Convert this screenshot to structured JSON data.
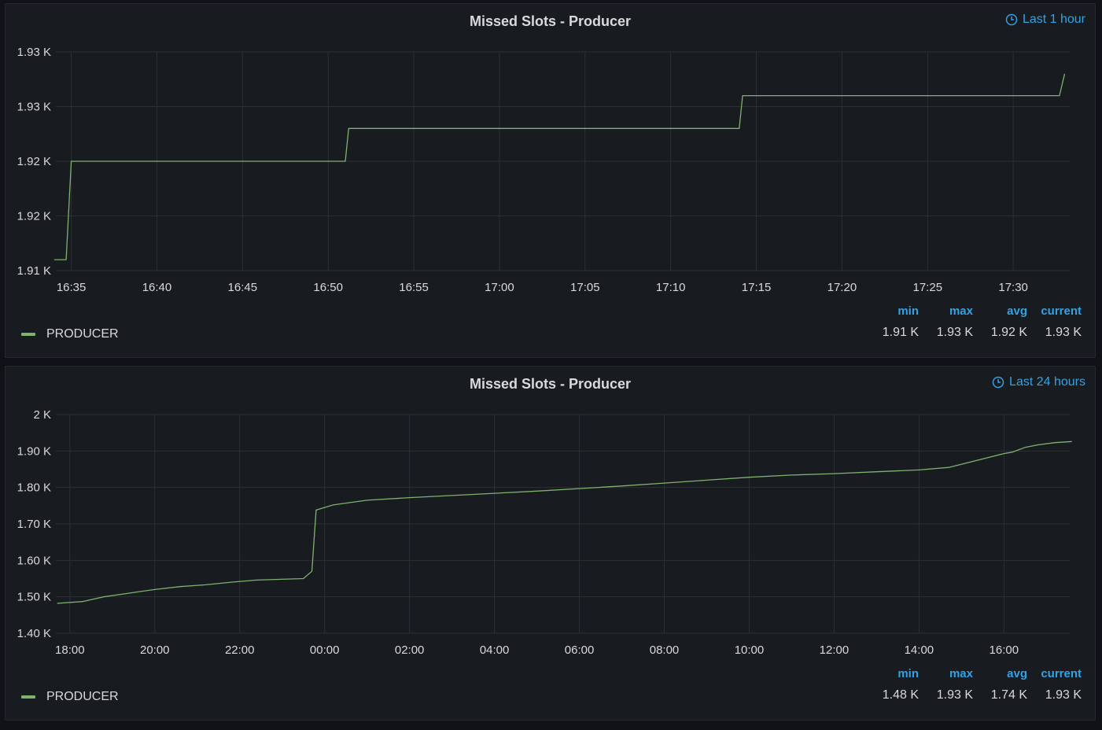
{
  "panels": [
    {
      "title": "Missed Slots - Producer",
      "time_range": "Last 1 hour",
      "legend": {
        "series_name": "PRODUCER",
        "color": "#7eb26d"
      },
      "stats": {
        "min_label": "min",
        "max_label": "max",
        "avg_label": "avg",
        "current_label": "current",
        "min": "1.91 K",
        "max": "1.93 K",
        "avg": "1.92 K",
        "current": "1.93 K"
      }
    },
    {
      "title": "Missed Slots - Producer",
      "time_range": "Last 24 hours",
      "legend": {
        "series_name": "PRODUCER",
        "color": "#7eb26d"
      },
      "stats": {
        "min_label": "min",
        "max_label": "max",
        "avg_label": "avg",
        "current_label": "current",
        "min": "1.48 K",
        "max": "1.93 K",
        "avg": "1.74 K",
        "current": "1.93 K"
      }
    }
  ],
  "chart_data": [
    {
      "type": "line",
      "title": "Missed Slots - Producer",
      "x_ticks": [
        "16:35",
        "16:40",
        "16:45",
        "16:50",
        "16:55",
        "17:00",
        "17:05",
        "17:10",
        "17:15",
        "17:20",
        "17:25",
        "17:30"
      ],
      "y_ticks": [
        "1.91 K",
        "1.92 K",
        "1.92 K",
        "1.93 K",
        "1.93 K"
      ],
      "y_tick_values": [
        1910,
        1915,
        1920,
        1925,
        1930
      ],
      "xlim": [
        "16:34",
        "17:33"
      ],
      "ylim": [
        1910,
        1930
      ],
      "grid": true,
      "series": [
        {
          "name": "PRODUCER",
          "x": [
            "16:34",
            "16:34.7",
            "16:35",
            "16:51",
            "16:51.2",
            "17:14",
            "17:14.2",
            "17:32.7",
            "17:33"
          ],
          "y": [
            1911,
            1911,
            1920,
            1920,
            1923,
            1923,
            1926,
            1926,
            1928
          ]
        }
      ]
    },
    {
      "type": "line",
      "title": "Missed Slots - Producer",
      "x_ticks": [
        "18:00",
        "20:00",
        "22:00",
        "00:00",
        "02:00",
        "04:00",
        "06:00",
        "08:00",
        "10:00",
        "12:00",
        "14:00",
        "16:00"
      ],
      "y_ticks": [
        "1.40 K",
        "1.50 K",
        "1.60 K",
        "1.70 K",
        "1.80 K",
        "1.90 K",
        "2 K"
      ],
      "y_tick_values": [
        1400,
        1500,
        1600,
        1700,
        1800,
        1900,
        2000
      ],
      "xlim": [
        "17:40",
        "17:30 (+1d)"
      ],
      "ylim": [
        1400,
        2000
      ],
      "grid": true,
      "series": [
        {
          "name": "PRODUCER",
          "x_hours": [
            -0.3,
            0.3,
            0.8,
            1.4,
            2.0,
            2.6,
            3.2,
            3.8,
            4.4,
            5.5,
            5.7,
            5.8,
            6.2,
            7.0,
            8.0,
            9.0,
            10.0,
            11.0,
            12.0,
            13.0,
            14.0,
            15.0,
            16.0,
            17.0,
            18.0,
            19.0,
            20.0,
            20.7,
            22.0,
            22.2,
            22.5,
            22.8,
            23.2,
            23.6
          ],
          "y": [
            1482,
            1487,
            1500,
            1510,
            1520,
            1528,
            1533,
            1540,
            1546,
            1550,
            1570,
            1738,
            1752,
            1765,
            1772,
            1778,
            1784,
            1790,
            1797,
            1804,
            1812,
            1820,
            1828,
            1834,
            1838,
            1843,
            1848,
            1855,
            1893,
            1897,
            1910,
            1917,
            1923,
            1926
          ]
        }
      ]
    }
  ]
}
